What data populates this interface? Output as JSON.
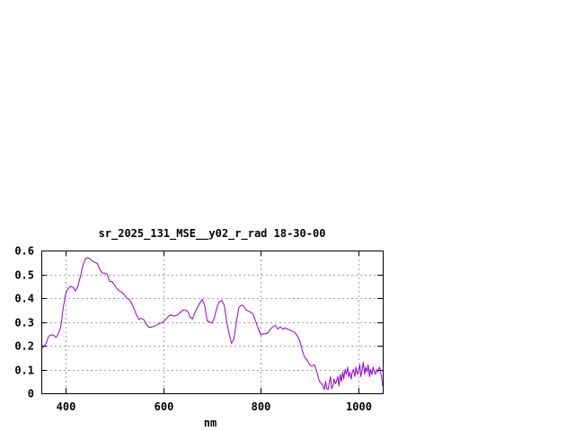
{
  "chart_data": {
    "type": "line",
    "title": "sr_2025_131_MSE__y02_r_rad 18-30-00",
    "xlabel": "nm",
    "ylabel": "",
    "xlim": [
      350,
      1050
    ],
    "ylim": [
      0,
      0.6
    ],
    "xticks": [
      400,
      600,
      800,
      1000
    ],
    "yticks": [
      0,
      0.1,
      0.2,
      0.3,
      0.4,
      0.5,
      0.6
    ],
    "xtick_labels": [
      "400",
      "600",
      "800",
      "1000"
    ],
    "ytick_labels": [
      "0",
      "0.1",
      "0.2",
      "0.3",
      "0.4",
      "0.5",
      "0.6"
    ],
    "grid": true,
    "legend": "none",
    "line_color": "#9400d3",
    "series": [
      {
        "x": [
          350,
          355,
          360,
          365,
          370,
          375,
          380,
          385,
          390,
          395,
          400,
          405,
          410,
          415,
          420,
          425,
          430,
          435,
          440,
          445,
          450,
          455,
          460,
          465,
          470,
          475,
          480,
          485,
          490,
          495,
          500,
          505,
          510,
          515,
          520,
          525,
          530,
          535,
          540,
          545,
          550,
          555,
          560,
          565,
          570,
          575,
          580,
          585,
          590,
          595,
          600,
          605,
          610,
          615,
          620,
          625,
          630,
          635,
          640,
          645,
          650,
          655,
          660,
          665,
          670,
          675,
          680,
          685,
          690,
          695,
          700,
          705,
          710,
          715,
          720,
          725,
          730,
          735,
          740,
          745,
          750,
          755,
          760,
          762,
          765,
          770,
          775,
          780,
          785,
          790,
          795,
          800,
          805,
          810,
          815,
          820,
          825,
          830,
          835,
          840,
          845,
          850,
          855,
          860,
          865,
          870,
          875,
          880,
          885,
          890,
          895,
          900,
          905,
          910,
          915,
          920,
          925,
          928,
          930,
          933,
          935,
          938,
          940,
          943,
          945,
          948,
          950,
          953,
          955,
          958,
          960,
          963,
          965,
          968,
          970,
          973,
          975,
          978,
          980,
          983,
          985,
          988,
          990,
          993,
          995,
          998,
          1000,
          1003,
          1005,
          1008,
          1010,
          1013,
          1015,
          1018,
          1020,
          1023,
          1025,
          1028,
          1030,
          1033,
          1035,
          1038,
          1040,
          1043,
          1045,
          1048,
          1050
        ],
        "y": [
          0.19,
          0.195,
          0.21,
          0.24,
          0.245,
          0.245,
          0.235,
          0.25,
          0.28,
          0.36,
          0.42,
          0.44,
          0.45,
          0.445,
          0.43,
          0.45,
          0.49,
          0.535,
          0.565,
          0.57,
          0.565,
          0.555,
          0.55,
          0.545,
          0.52,
          0.505,
          0.505,
          0.5,
          0.47,
          0.47,
          0.455,
          0.44,
          0.43,
          0.425,
          0.415,
          0.4,
          0.395,
          0.38,
          0.355,
          0.33,
          0.31,
          0.315,
          0.31,
          0.29,
          0.278,
          0.278,
          0.28,
          0.285,
          0.292,
          0.295,
          0.3,
          0.31,
          0.322,
          0.33,
          0.325,
          0.325,
          0.33,
          0.34,
          0.35,
          0.35,
          0.345,
          0.32,
          0.312,
          0.34,
          0.36,
          0.38,
          0.395,
          0.37,
          0.305,
          0.3,
          0.295,
          0.32,
          0.36,
          0.385,
          0.39,
          0.37,
          0.3,
          0.25,
          0.21,
          0.23,
          0.3,
          0.36,
          0.37,
          0.37,
          0.365,
          0.35,
          0.345,
          0.34,
          0.33,
          0.3,
          0.27,
          0.245,
          0.25,
          0.25,
          0.255,
          0.27,
          0.28,
          0.285,
          0.27,
          0.28,
          0.27,
          0.275,
          0.27,
          0.265,
          0.26,
          0.255,
          0.24,
          0.22,
          0.18,
          0.15,
          0.14,
          0.12,
          0.115,
          0.12,
          0.09,
          0.05,
          0.04,
          0.03,
          0.015,
          0.05,
          0.02,
          0.015,
          0.04,
          0.07,
          0.02,
          0.03,
          0.06,
          0.04,
          0.05,
          0.07,
          0.03,
          0.08,
          0.05,
          0.09,
          0.06,
          0.1,
          0.08,
          0.11,
          0.07,
          0.09,
          0.06,
          0.09,
          0.1,
          0.07,
          0.11,
          0.08,
          0.09,
          0.12,
          0.07,
          0.1,
          0.13,
          0.08,
          0.11,
          0.09,
          0.12,
          0.07,
          0.1,
          0.08,
          0.11,
          0.09,
          0.08,
          0.1,
          0.09,
          0.11,
          0.1,
          0.06,
          0.03
        ]
      }
    ]
  }
}
